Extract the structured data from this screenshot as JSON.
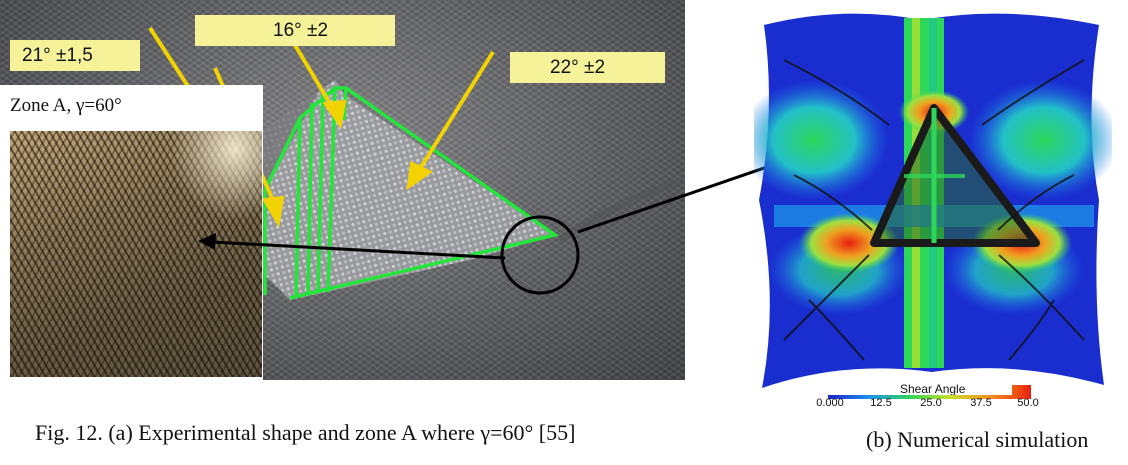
{
  "panel_a": {
    "angle_labels": [
      "21° ±1,5",
      "16° ±2",
      "22° ±2"
    ],
    "inset_title": "Zone A, γ=60°",
    "caption": "Fig. 12. (a) Experimental shape and zone A where γ=60° [55]"
  },
  "panel_b": {
    "colorbar_title": "Shear Angle",
    "colorbar_ticks": [
      "0.000",
      "12.5",
      "25.0",
      "37.5",
      "50.0"
    ],
    "colorbar_colors": [
      "#1a22c8",
      "#1e8ff0",
      "#2ed65a",
      "#c8e02a",
      "#f09020",
      "#e82010"
    ],
    "caption": "(b) Numerical simulation"
  },
  "colors": {
    "label_fill": "#f6f29a",
    "arrow_yellow": "#f2d200",
    "pattern_lines": "#22e63a",
    "pointer": "#000000"
  }
}
